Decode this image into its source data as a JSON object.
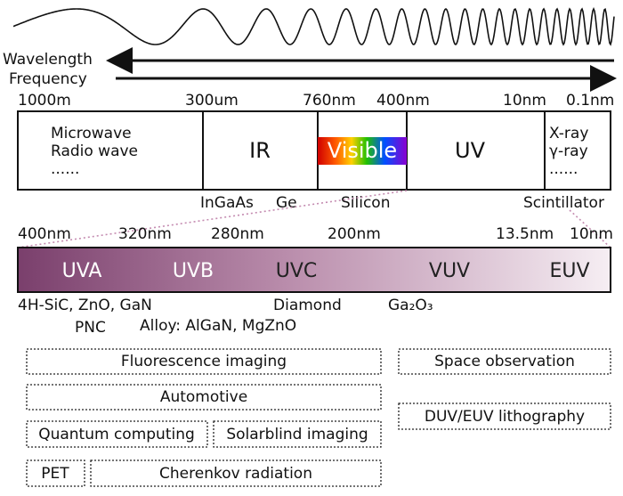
{
  "axes": {
    "wavelength": "Wavelength",
    "frequency": "Frequency"
  },
  "top_scale": [
    "1000m",
    "300um",
    "760nm",
    "400nm",
    "10nm",
    "0.1nm"
  ],
  "bands": {
    "radio": [
      "Microwave",
      "Radio wave",
      "......"
    ],
    "ir": "IR",
    "visible": "Visible",
    "uv": "UV",
    "xray": [
      "X-ray",
      "γ-ray",
      "......"
    ]
  },
  "detectors": [
    "InGaAs",
    "Ge",
    "Silicon",
    "Scintillator"
  ],
  "uv_scale": [
    "400nm",
    "320nm",
    "280nm",
    "200nm",
    "13.5nm",
    "10nm"
  ],
  "uv_bands": [
    "UVA",
    "UVB",
    "UVC",
    "VUV",
    "EUV"
  ],
  "materials": [
    "4H-SiC, ZnO, GaN",
    "PNC",
    "Alloy: AlGaN, MgZnO",
    "Diamond",
    "Ga₂O₃"
  ],
  "applications": [
    "Fluorescence imaging",
    "Automotive",
    "Quantum computing",
    "Solarblind imaging",
    "PET",
    "Cherenkov radiation",
    "Space observation",
    "DUV/EUV lithography"
  ]
}
